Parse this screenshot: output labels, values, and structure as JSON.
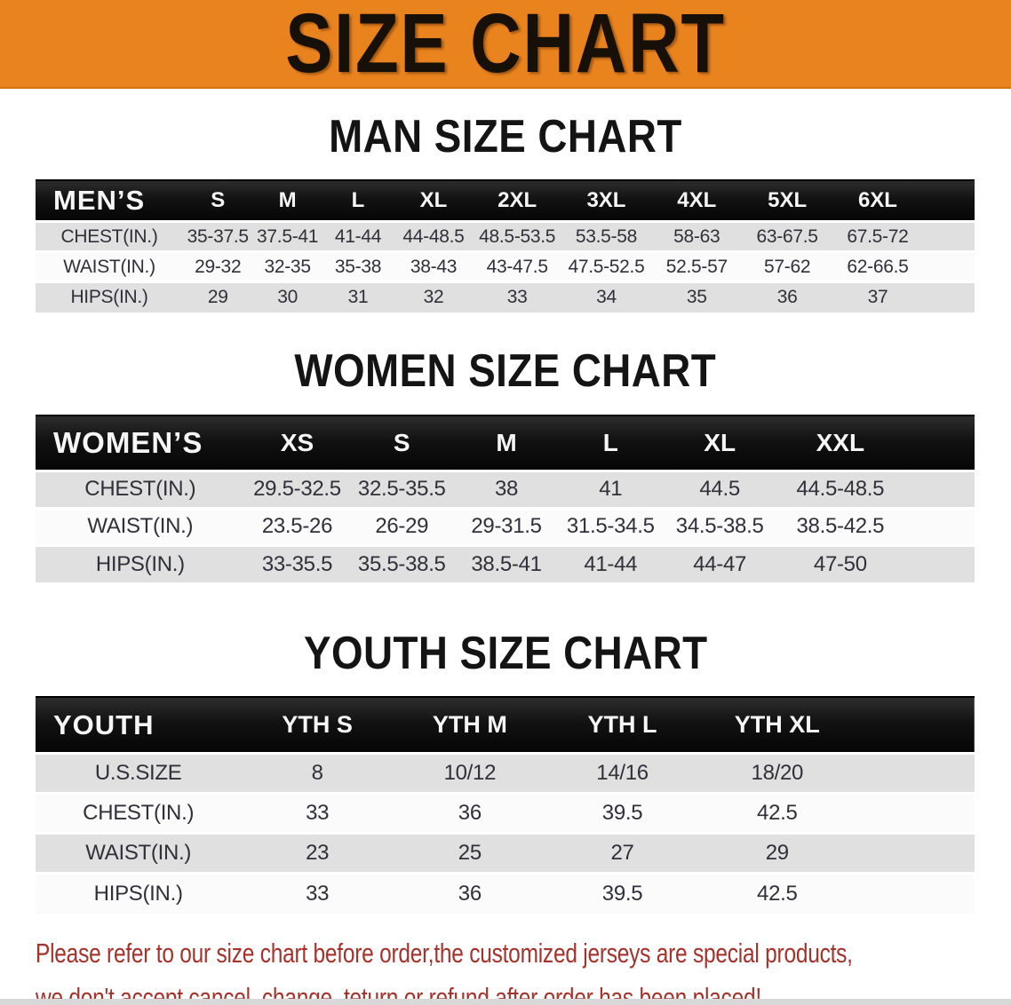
{
  "banner": {
    "title": "SIZE CHART",
    "bg_color": "#E8831E",
    "text_color": "#161008"
  },
  "sections": [
    {
      "heading": "MAN SIZE CHART",
      "table": {
        "header_label": "MEN’S",
        "columns": [
          "S",
          "M",
          "L",
          "XL",
          "2XL",
          "3XL",
          "4XL",
          "5XL",
          "6XL"
        ],
        "rows": [
          {
            "label": "CHEST(IN.)",
            "values": [
              "35-37.5",
              "37.5-41",
              "41-44",
              "44-48.5",
              "48.5-53.5",
              "53.5-58",
              "58-63",
              "63-67.5",
              "67.5-72"
            ]
          },
          {
            "label": "WAIST(IN.)",
            "values": [
              "29-32",
              "32-35",
              "35-38",
              "38-43",
              "43-47.5",
              "47.5-52.5",
              "52.5-57",
              "57-62",
              "62-66.5"
            ]
          },
          {
            "label": "HIPS(IN.)",
            "values": [
              "29",
              "30",
              "31",
              "32",
              "33",
              "34",
              "35",
              "36",
              "37"
            ]
          }
        ]
      }
    },
    {
      "heading": "WOMEN SIZE CHART",
      "table": {
        "header_label": "WOMEN’S",
        "columns": [
          "XS",
          "S",
          "M",
          "L",
          "XL",
          "XXL"
        ],
        "rows": [
          {
            "label": "CHEST(IN.)",
            "values": [
              "29.5-32.5",
              "32.5-35.5",
              "38",
              "41",
              "44.5",
              "44.5-48.5"
            ]
          },
          {
            "label": "WAIST(IN.)",
            "values": [
              "23.5-26",
              "26-29",
              "29-31.5",
              "31.5-34.5",
              "34.5-38.5",
              "38.5-42.5"
            ]
          },
          {
            "label": "HIPS(IN.)",
            "values": [
              "33-35.5",
              "35.5-38.5",
              "38.5-41",
              "41-44",
              "44-47",
              "47-50"
            ]
          }
        ]
      }
    },
    {
      "heading": "YOUTH SIZE CHART",
      "table": {
        "header_label": "YOUTH",
        "columns": [
          "YTH S",
          "YTH M",
          "YTH L",
          "YTH XL"
        ],
        "rows": [
          {
            "label": "U.S.SIZE",
            "values": [
              "8",
              "10/12",
              "14/16",
              "18/20"
            ]
          },
          {
            "label": "CHEST(IN.)",
            "values": [
              "33",
              "36",
              "39.5",
              "42.5"
            ]
          },
          {
            "label": "WAIST(IN.)",
            "values": [
              "23",
              "25",
              "27",
              "29"
            ]
          },
          {
            "label": "HIPS(IN.)",
            "values": [
              "33",
              "36",
              "39.5",
              "42.5"
            ]
          }
        ]
      }
    }
  ],
  "disclaimer": {
    "line1": "Please refer to our size chart before order,the customized jerseys are special products,",
    "line2": "we don't accept cancel, change, teturn or refund after order has been placed!",
    "color": "#A5332B"
  },
  "style_colors": {
    "header_bar": "#121212",
    "row_gray": "#E0E0E0",
    "row_white": "#FBFBFB"
  }
}
